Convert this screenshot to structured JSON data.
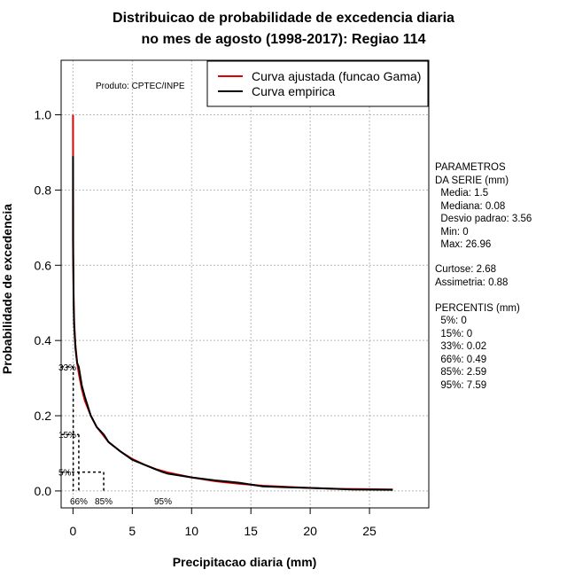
{
  "chart_data": {
    "type": "line",
    "title_line1": "Distribuicao de probabilidade de excedencia diaria",
    "title_line2": "no mes de agosto (1998-2017): Regiao 114",
    "xlabel": "Precipitacao diaria (mm)",
    "ylabel": "Probabilidade de excedencia",
    "xlim": [
      -1,
      30
    ],
    "ylim": [
      -0.045,
      1.145
    ],
    "xticks": [
      0,
      5,
      10,
      15,
      20,
      25
    ],
    "yticks": [
      0.0,
      0.2,
      0.4,
      0.6,
      0.8,
      1.0
    ],
    "xtick_labels": [
      "0",
      "5",
      "10",
      "15",
      "20",
      "25"
    ],
    "ytick_labels": [
      "0.0",
      "0.2",
      "0.4",
      "0.6",
      "0.8",
      "1.0"
    ],
    "grid": true,
    "product_label": "Produto: CPTEC/INPE",
    "legend": {
      "position": "top-right",
      "entries": [
        {
          "label": "Curva ajustada (funcao Gama)",
          "color": "#e00000"
        },
        {
          "label": "Curva empirica",
          "color": "#000000"
        }
      ]
    },
    "series": [
      {
        "name": "Curva ajustada (funcao Gama)",
        "color": "#e00000",
        "x": [
          0,
          0.02,
          0.05,
          0.1,
          0.2,
          0.35,
          0.5,
          0.75,
          1,
          1.5,
          2,
          2.5,
          3,
          4,
          5,
          6,
          7,
          8,
          10,
          12,
          14,
          16,
          18,
          20,
          22,
          24,
          26.96
        ],
        "y": [
          1.0,
          0.62,
          0.52,
          0.45,
          0.39,
          0.34,
          0.31,
          0.27,
          0.24,
          0.2,
          0.17,
          0.15,
          0.13,
          0.105,
          0.085,
          0.07,
          0.058,
          0.049,
          0.036,
          0.026,
          0.019,
          0.014,
          0.011,
          0.008,
          0.006,
          0.005,
          0.004
        ]
      },
      {
        "name": "Curva empirica",
        "color": "#000000",
        "x": [
          0,
          0,
          0.02,
          0.05,
          0.1,
          0.2,
          0.35,
          0.49,
          0.75,
          1,
          1.5,
          2,
          2.59,
          3,
          4,
          5,
          6,
          7,
          7.59,
          8,
          10,
          12,
          14,
          16,
          18,
          20,
          23.5,
          26.96
        ],
        "y": [
          0.89,
          0.67,
          0.6,
          0.5,
          0.44,
          0.38,
          0.34,
          0.33,
          0.28,
          0.25,
          0.2,
          0.17,
          0.15,
          0.13,
          0.105,
          0.083,
          0.07,
          0.057,
          0.05,
          0.046,
          0.036,
          0.028,
          0.022,
          0.012,
          0.01,
          0.008,
          0.004,
          0.003
        ]
      }
    ],
    "percentile_markers": [
      {
        "prob": 0.33,
        "value": 0.02,
        "ylabel": "33%",
        "xlabel": ""
      },
      {
        "prob": 0.15,
        "value": 0.49,
        "ylabel": "15%",
        "xlabel": "66%"
      },
      {
        "prob": 0.05,
        "value": 2.59,
        "ylabel": "5%",
        "xlabel": "85%"
      },
      {
        "prob": 0.0,
        "value": 7.59,
        "ylabel": "",
        "xlabel": "95%"
      }
    ]
  },
  "stats_panel": {
    "series_header1": "PARAMETROS",
    "series_header2": "DA SERIE (mm)",
    "media": "  Media: 1.5",
    "mediana": "  Mediana: 0.08",
    "desvio": "  Desvio padrao: 3.56",
    "min": "  Min: 0",
    "max": "  Max: 26.96",
    "curtose": "Curtose: 2.68",
    "assimetria": "Assimetria: 0.88",
    "percentis_header": "PERCENTIS (mm)",
    "p5": "  5%: 0",
    "p15": "  15%: 0",
    "p33": "  33%: 0.02",
    "p66": "  66%: 0.49",
    "p85": "  85%: 2.59",
    "p95": "  95%: 7.59"
  }
}
